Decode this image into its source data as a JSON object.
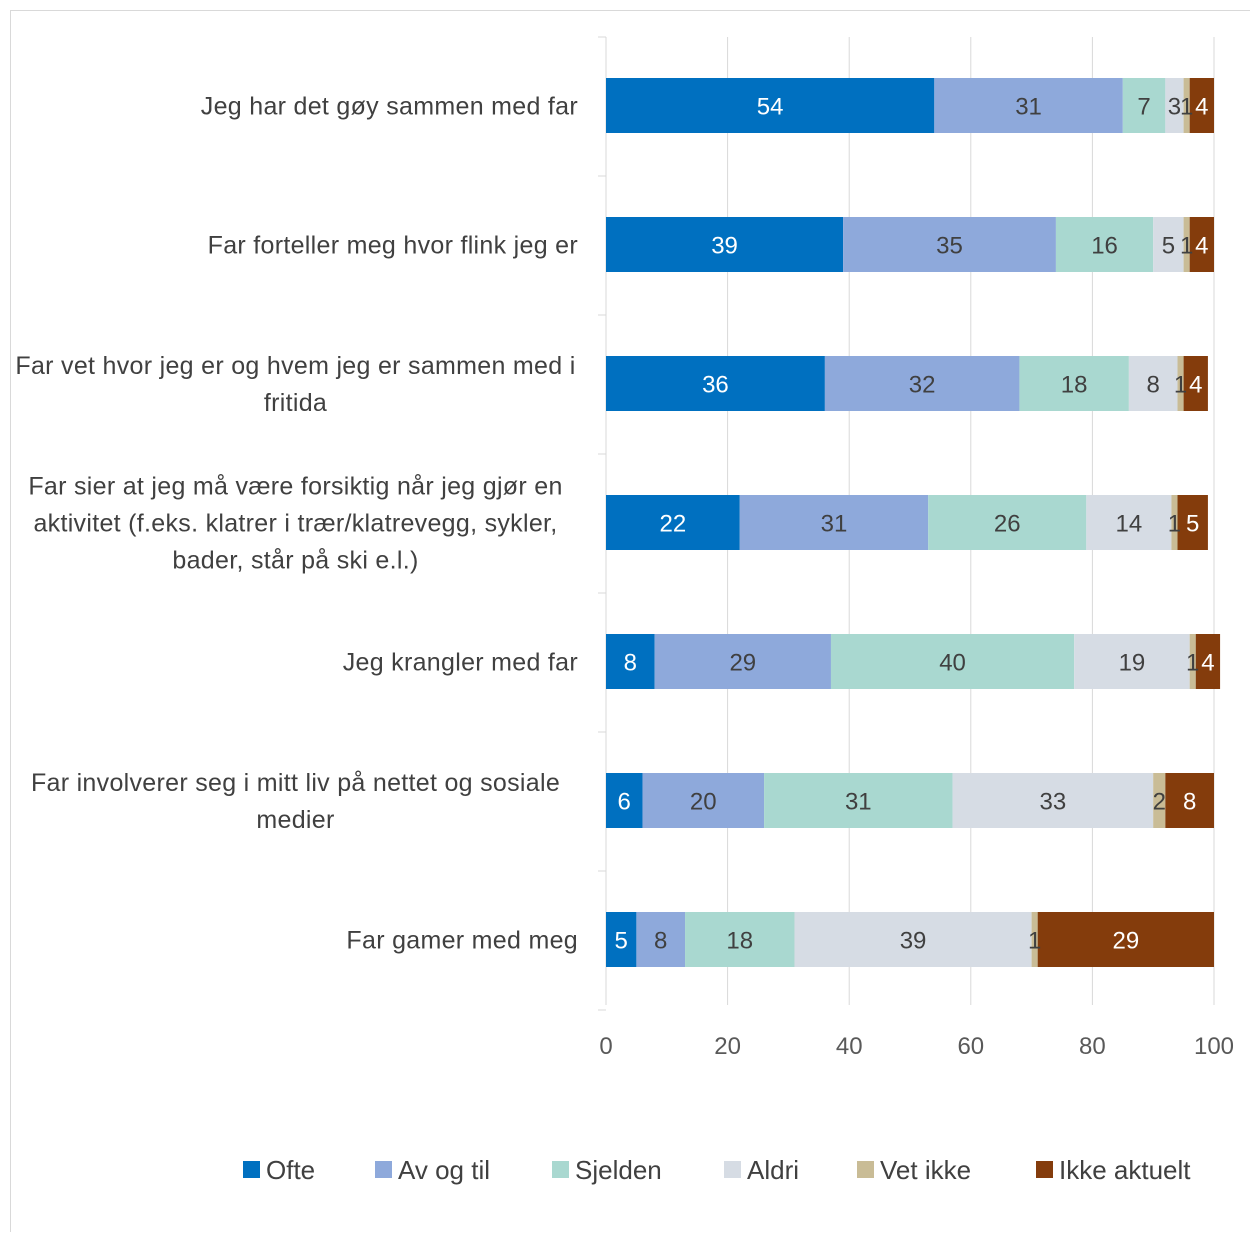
{
  "chart_data": {
    "type": "bar",
    "orientation": "horizontal",
    "stacked": true,
    "categories": [
      "Jeg har det gøy sammen med far",
      "Far forteller meg hvor flink jeg er",
      "Far vet hvor jeg er og hvem jeg er sammen med i fritida",
      "Far sier at jeg må være forsiktig når jeg gjør en aktivitet (f.eks. klatrer i trær/klatrevegg, sykler, bader, står på ski e.l.)",
      "Jeg krangler med far",
      "Far involverer seg i mitt liv på nettet og sosiale medier",
      "Far gamer med meg"
    ],
    "series": [
      {
        "name": "Ofte",
        "color": "#0070C0",
        "label_color": "#ffffff",
        "values": [
          54,
          39,
          36,
          22,
          8,
          6,
          5
        ]
      },
      {
        "name": "Av og til",
        "color": "#8EA9DB",
        "label_color": "#404040",
        "values": [
          31,
          35,
          32,
          31,
          29,
          20,
          8
        ]
      },
      {
        "name": "Sjelden",
        "color": "#A9D8D0",
        "label_color": "#404040",
        "values": [
          7,
          16,
          18,
          26,
          40,
          31,
          18
        ]
      },
      {
        "name": "Aldri",
        "color": "#D6DCE4",
        "label_color": "#404040",
        "values": [
          3,
          5,
          8,
          14,
          19,
          33,
          39
        ]
      },
      {
        "name": "Vet ikke",
        "color": "#C9BC96",
        "label_color": "#404040",
        "values": [
          1,
          1,
          1,
          1,
          1,
          2,
          1
        ]
      },
      {
        "name": "Ikke aktuelt",
        "color": "#843C0C",
        "label_color": "#ffffff",
        "values": [
          4,
          4,
          4,
          5,
          4,
          8,
          29
        ]
      }
    ],
    "xlim": [
      0,
      100
    ],
    "xticks": [
      "0",
      "20",
      "40",
      "60",
      "80",
      "100"
    ],
    "grid": true,
    "legend_position": "bottom"
  }
}
